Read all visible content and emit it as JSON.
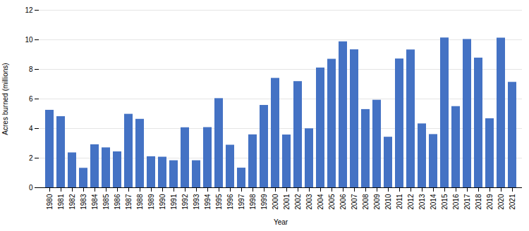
{
  "chart_data": {
    "type": "bar",
    "categories": [
      "1980",
      "1981",
      "1982",
      "1983",
      "1984",
      "1985",
      "1986",
      "1987",
      "1988",
      "1989",
      "1990",
      "1991",
      "1992",
      "1993",
      "1994",
      "1995",
      "1996",
      "1997",
      "1998",
      "1999",
      "2000",
      "2001",
      "2002",
      "2003",
      "2004",
      "2005",
      "2006",
      "2007",
      "2008",
      "2009",
      "2010",
      "2011",
      "2012",
      "2013",
      "2014",
      "2015",
      "2016",
      "2017",
      "2018",
      "2019",
      "2020",
      "2021"
    ],
    "values": [
      5.24,
      4.81,
      2.36,
      1.32,
      2.91,
      2.7,
      2.43,
      4.97,
      4.63,
      2.1,
      2.07,
      1.83,
      4.06,
      1.83,
      4.07,
      6.03,
      2.88,
      1.33,
      3.58,
      5.57,
      7.4,
      3.57,
      7.18,
      3.99,
      8.1,
      8.69,
      9.87,
      9.33,
      5.29,
      5.92,
      3.42,
      8.71,
      9.32,
      4.32,
      3.6,
      10.13,
      5.49,
      10.03,
      8.77,
      4.67,
      10.12,
      7.13
    ],
    "color": "#4472C4",
    "xlabel": "Year",
    "ylabel": "Acres burned (millions)",
    "ylim": [
      0,
      12
    ],
    "yticks": [
      0,
      2,
      4,
      6,
      8,
      10,
      12
    ],
    "grid": true
  }
}
